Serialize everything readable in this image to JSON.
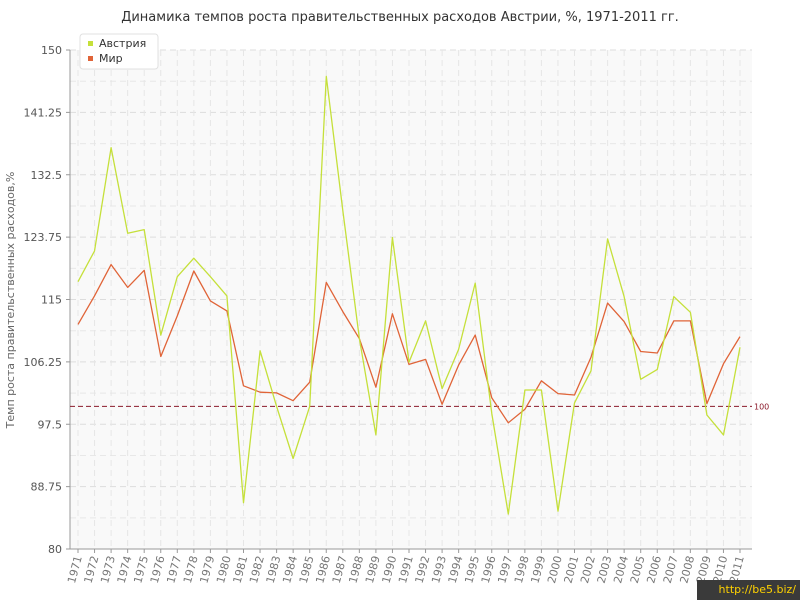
{
  "chart_data": {
    "type": "line",
    "title": "Динамика темпов роста правительственных расходов Австрии, %, 1971-2011 гг.",
    "xlabel": "",
    "ylabel": "Темп роста правительственных расходов,%",
    "ylim": [
      80,
      150
    ],
    "yticks": [
      "80",
      "88.75",
      "97.5",
      "106.25",
      "115",
      "123.75",
      "132.5",
      "141.25",
      "150"
    ],
    "grid": true,
    "legend_position": "top-left",
    "reference_line": {
      "value": 100,
      "label": "100",
      "color": "#8b1a2b"
    },
    "x": [
      "1971",
      "1972",
      "1973",
      "1974",
      "1975",
      "1976",
      "1977",
      "1978",
      "1979",
      "1980",
      "1981",
      "1982",
      "1983",
      "1984",
      "1985",
      "1986",
      "1987",
      "1988",
      "1989",
      "1990",
      "1991",
      "1992",
      "1993",
      "1994",
      "1995",
      "1996",
      "1997",
      "1998",
      "1999",
      "2000",
      "2001",
      "2002",
      "2003",
      "2004",
      "2005",
      "2006",
      "2007",
      "2008",
      "2009",
      "2010",
      "2011"
    ],
    "series": [
      {
        "name": "Австрия",
        "color": "#c5e03a",
        "values": [
          117.5,
          121.8,
          136.3,
          124.3,
          124.8,
          110,
          118.2,
          120.8,
          118.2,
          115.5,
          86.5,
          107.8,
          100,
          92.7,
          100,
          146.3,
          127.5,
          109.5,
          96,
          123.7,
          106.2,
          112,
          102.5,
          108,
          117.3,
          99,
          84.9,
          102.3,
          102.3,
          85.3,
          100.5,
          105,
          123.5,
          115.4,
          103.8,
          105.2,
          115.4,
          113.2,
          98.8,
          96,
          108.3
        ]
      },
      {
        "name": "Мир",
        "color": "#e06438",
        "values": [
          111.5,
          115.5,
          119.9,
          116.7,
          119.1,
          107,
          112.7,
          119,
          114.8,
          113.4,
          102.9,
          102,
          101.9,
          100.8,
          103.4,
          117.4,
          113.3,
          109.5,
          102.7,
          113,
          105.9,
          106.6,
          100.3,
          105.8,
          110,
          101.2,
          97.7,
          99.6,
          103.6,
          101.8,
          101.6,
          106.9,
          114.5,
          111.9,
          107.7,
          107.5,
          112,
          112,
          100.4,
          106,
          109.8
        ]
      }
    ]
  },
  "watermark": "http://be5.biz/"
}
